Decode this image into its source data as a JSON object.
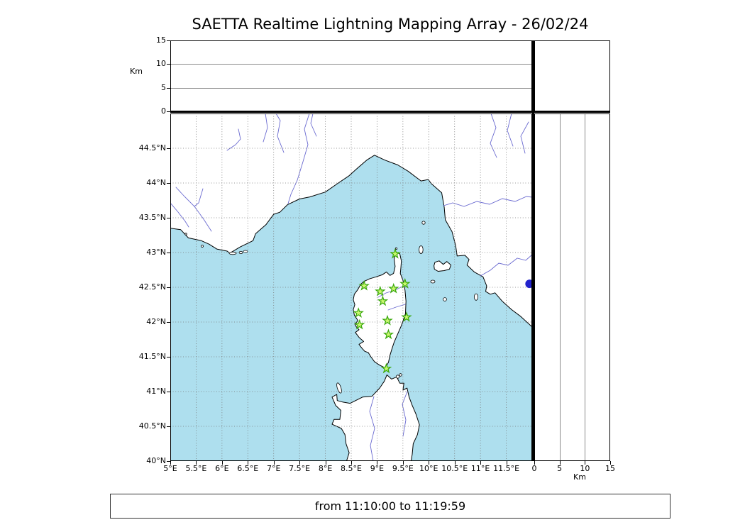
{
  "title": "SAETTA Realtime Lightning Mapping Array - 26/02/24",
  "footer": {
    "text": "from 11:10:00 to 11:19:59"
  },
  "top_panel": {
    "axis_label": "Km",
    "tick_labels": [
      "15",
      "10",
      "5",
      "0"
    ],
    "tick_values": [
      15,
      10,
      5,
      0
    ]
  },
  "right_panel": {
    "axis_label": "Km",
    "tick_labels": [
      "0",
      "5",
      "10",
      "15"
    ],
    "tick_values": [
      0,
      5,
      10,
      15
    ]
  },
  "map_panel": {
    "lat_tick_labels": [
      "44.5°N",
      "44°N",
      "43.5°N",
      "43°N",
      "42.5°N",
      "42°N",
      "41.5°N",
      "41°N",
      "40.5°N",
      "40°N"
    ],
    "lat_tick_values": [
      44.5,
      44,
      43.5,
      43,
      42.5,
      42,
      41.5,
      41,
      40.5,
      40
    ],
    "lon_tick_labels": [
      "5°E",
      "5.5°E",
      "6°E",
      "6.5°E",
      "7°E",
      "7.5°E",
      "8°E",
      "8.5°E",
      "9°E",
      "9.5°E",
      "10°E",
      "10.5°E",
      "11°E",
      "11.5°E"
    ],
    "lon_tick_values": [
      5,
      5.5,
      6,
      6.5,
      7,
      7.5,
      8,
      8.5,
      9,
      9.5,
      10,
      10.5,
      11,
      11.5
    ]
  },
  "chart_data": {
    "type": "scatter",
    "title": "SAETTA Realtime Lightning Mapping Array - 26/02/24",
    "time_window": "from 11:10:00 to 11:19:59",
    "panels": [
      {
        "name": "altitude-vs-longitude",
        "position": "top",
        "xlim": [
          5,
          12
        ],
        "ylim": [
          0,
          15
        ],
        "ylabel": "Km",
        "yticks": [
          0,
          5,
          10,
          15
        ],
        "points": []
      },
      {
        "name": "map",
        "position": "main",
        "xlim": [
          5,
          12
        ],
        "ylim": [
          40,
          45
        ],
        "grid": "dotted every 0.5 deg"
      },
      {
        "name": "altitude-vs-latitude",
        "position": "right",
        "xlim": [
          0,
          15
        ],
        "ylim": [
          40,
          45
        ],
        "xlabel": "Km",
        "xticks": [
          0,
          5,
          10,
          15
        ],
        "points": []
      },
      {
        "name": "histogram-box",
        "position": "top-right",
        "points": []
      }
    ],
    "stations": [
      {
        "lon": 9.35,
        "lat": 42.98
      },
      {
        "lon": 8.75,
        "lat": 42.52
      },
      {
        "lon": 9.06,
        "lat": 42.44
      },
      {
        "lon": 9.32,
        "lat": 42.48
      },
      {
        "lon": 9.54,
        "lat": 42.55
      },
      {
        "lon": 9.11,
        "lat": 42.3
      },
      {
        "lon": 8.64,
        "lat": 42.13
      },
      {
        "lon": 9.57,
        "lat": 42.07
      },
      {
        "lon": 8.66,
        "lat": 41.96
      },
      {
        "lon": 9.2,
        "lat": 42.02
      },
      {
        "lon": 9.22,
        "lat": 41.82
      },
      {
        "lon": 9.18,
        "lat": 41.33
      }
    ],
    "edge_marker": {
      "lon": 11.95,
      "lat": 42.55,
      "shape": "circle",
      "color": "#2222cc"
    },
    "colors": {
      "sea": "#aedfee",
      "land": "#ffffff",
      "coast": "#000000",
      "river": "#6a6ad0",
      "grid": "#777777",
      "station_fill": "#c9f76f",
      "station_stroke": "#39a80b"
    }
  }
}
